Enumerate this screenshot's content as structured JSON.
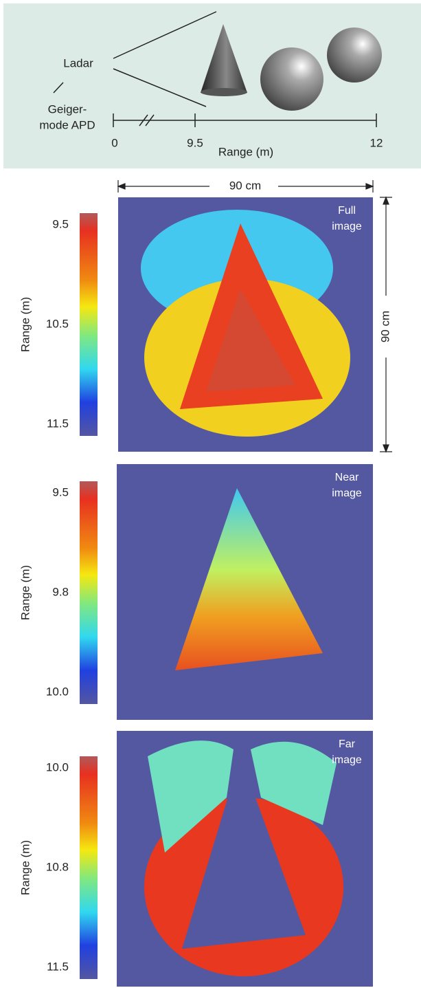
{
  "diagram": {
    "ladar": "Ladar",
    "apd_lines": [
      "Geiger-",
      "mode APD"
    ],
    "ticks": [
      "0",
      "9.5",
      "12"
    ],
    "axis_label": "Range (m)"
  },
  "scale": {
    "width": "90 cm",
    "height": "90 cm"
  },
  "panels": [
    {
      "label_lines": [
        "Full",
        "image"
      ],
      "colorbar_title": "Range (m)",
      "ticks": [
        "9.5",
        "10.5",
        "11.5"
      ]
    },
    {
      "label_lines": [
        "Near",
        "image"
      ],
      "colorbar_title": "Range (m)",
      "ticks": [
        "9.5",
        "9.8",
        "10.0"
      ]
    },
    {
      "label_lines": [
        "Far",
        "image"
      ],
      "colorbar_title": "Range (m)",
      "ticks": [
        "10.0",
        "10.8",
        "11.5"
      ]
    }
  ]
}
